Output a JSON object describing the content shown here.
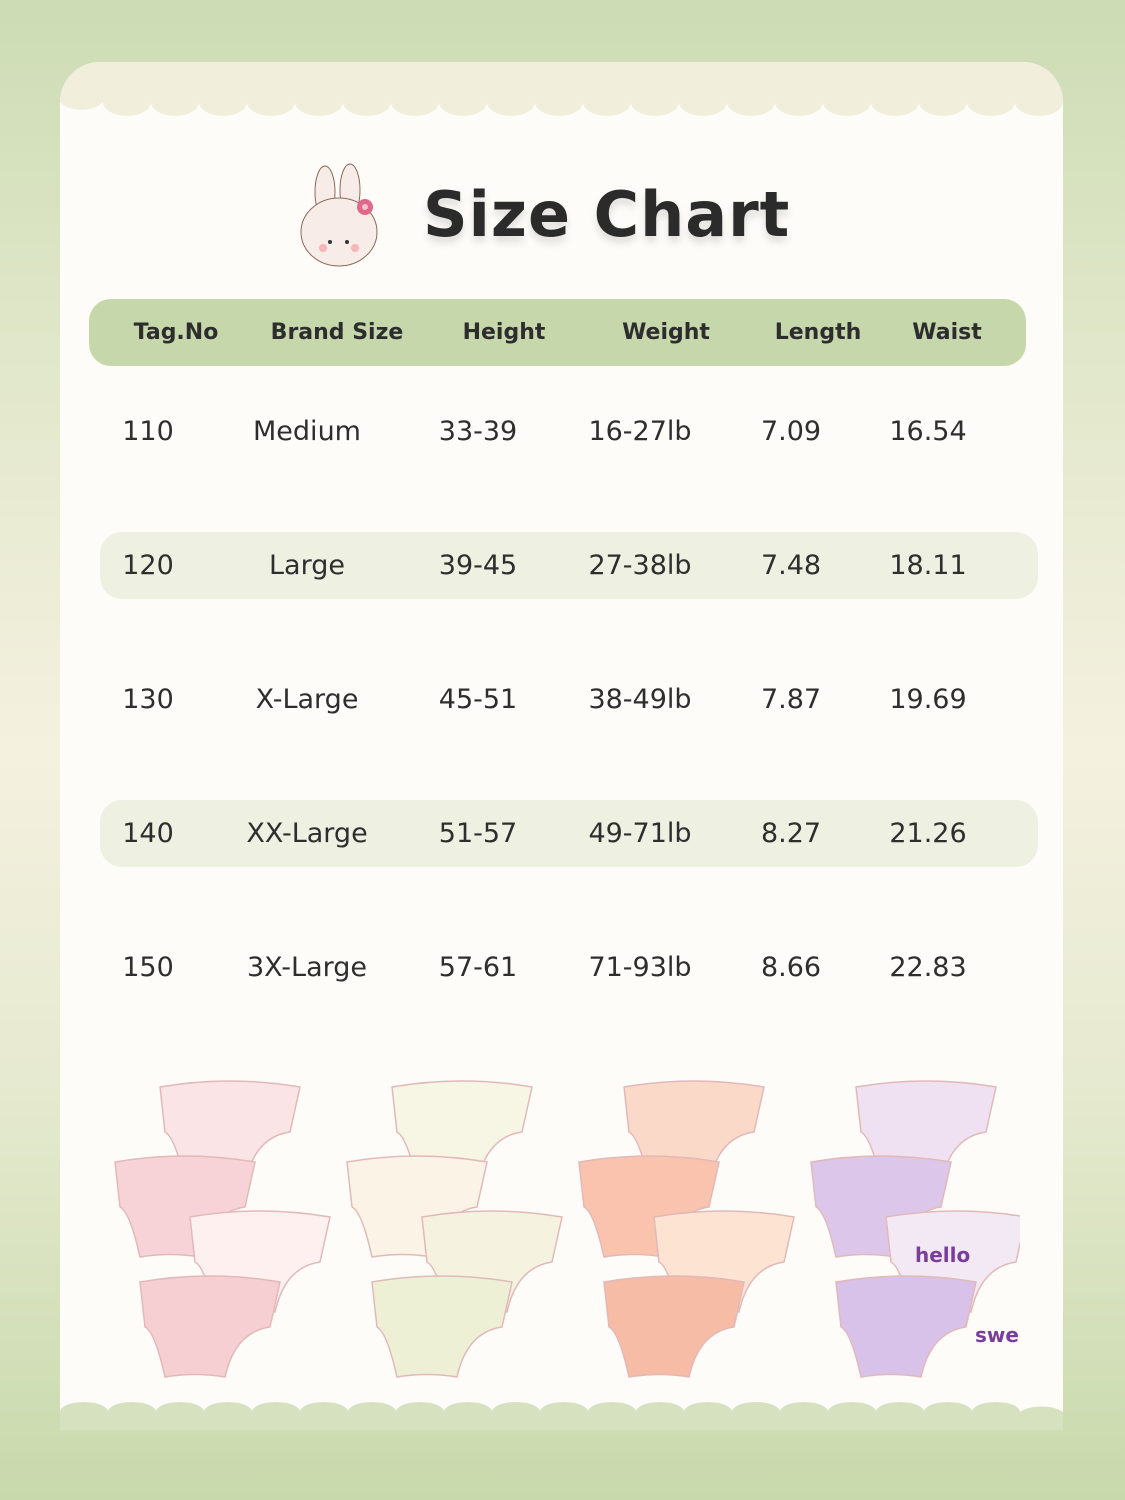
{
  "title": "Size Chart",
  "table": {
    "headers": [
      "Tag.No",
      "Brand Size",
      "Height",
      "Weight",
      "Length",
      "Waist"
    ],
    "rows": [
      [
        "110",
        "Medium",
        "33-39",
        "16-27lb",
        "7.09",
        "16.54"
      ],
      [
        "120",
        "Large",
        "39-45",
        "27-38lb",
        "7.48",
        "18.11"
      ],
      [
        "130",
        "X-Large",
        "45-51",
        "38-49lb",
        "7.87",
        "19.69"
      ],
      [
        "140",
        "XX-Large",
        "51-57",
        "49-71lb",
        "8.27",
        "21.26"
      ],
      [
        "150",
        "3X-Large",
        "57-61",
        "71-93lb",
        "8.66",
        "22.83"
      ]
    ]
  },
  "product_labels": [
    "hello",
    "sweet"
  ],
  "colors": {
    "header": "#c6d8ab",
    "alt_row": "#eef1e2",
    "card": "#fdfcf8",
    "scallop": "#f1efdc"
  }
}
